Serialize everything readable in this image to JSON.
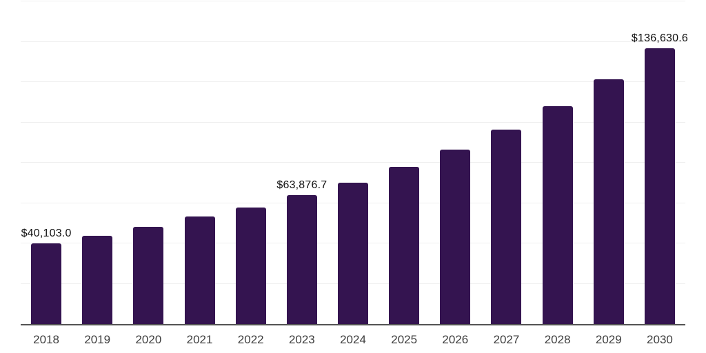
{
  "chart_data": {
    "type": "bar",
    "title": "",
    "xlabel": "",
    "ylabel": "",
    "categories": [
      "2018",
      "2019",
      "2020",
      "2021",
      "2022",
      "2023",
      "2024",
      "2025",
      "2026",
      "2027",
      "2028",
      "2029",
      "2030"
    ],
    "values": [
      40103.0,
      43900,
      48200,
      53300,
      57900,
      63876.7,
      70100,
      77800,
      86400,
      96300,
      107900,
      121500,
      136630.6
    ],
    "value_labels": {
      "2018": "$40,103.0",
      "2023": "$63,876.7",
      "2030": "$136,630.6"
    },
    "ylim": [
      0,
      160000
    ],
    "grid_step": 20000,
    "grid": true,
    "y_tick_labels_visible": false,
    "legend_position": "none",
    "colors": {
      "bar": "#341450",
      "grid_line": "#efefef",
      "axis_line": "#545454",
      "x_tick_label": "#3d3d3d",
      "value_label": "#111111",
      "background": "#ffffff"
    }
  }
}
